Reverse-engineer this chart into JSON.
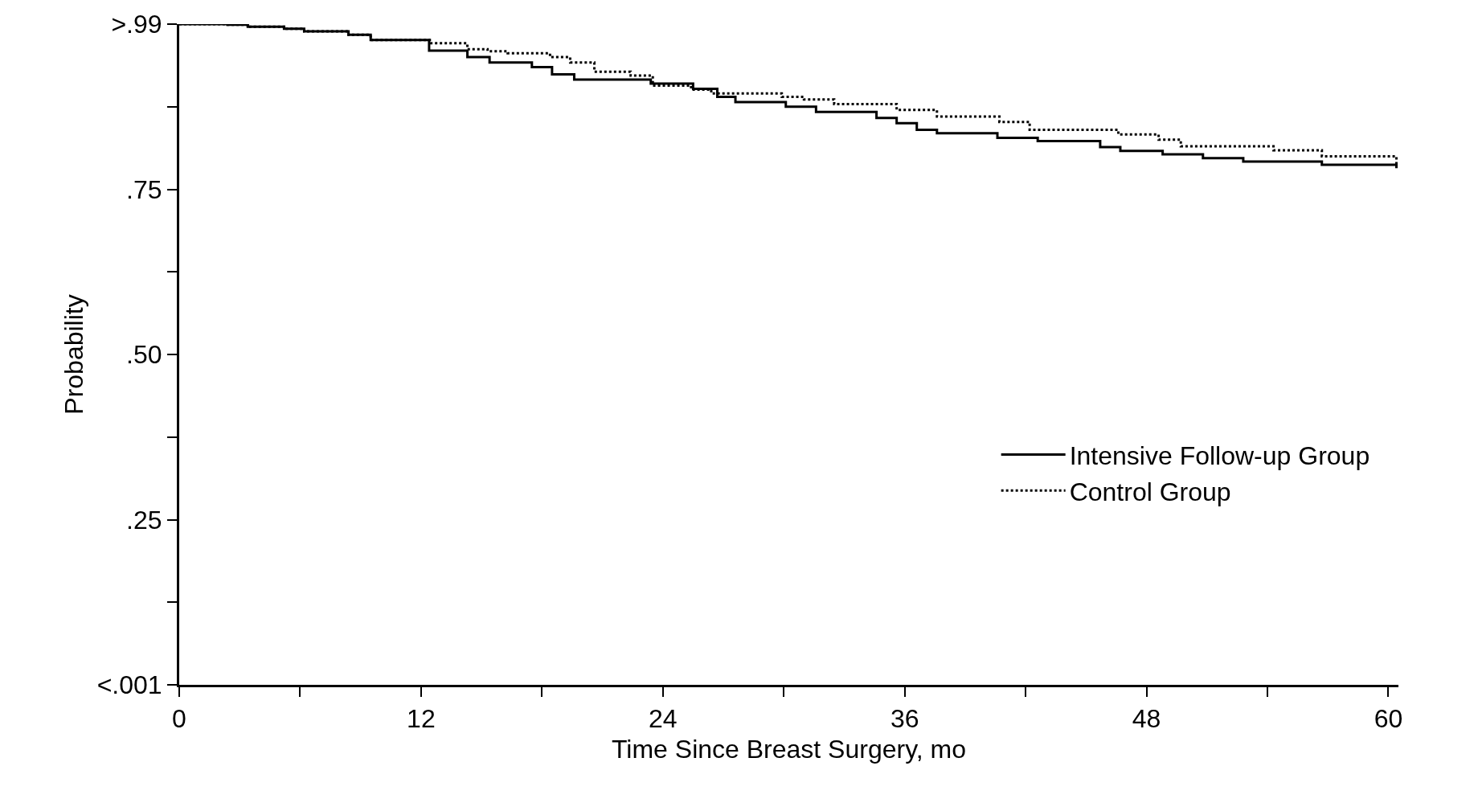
{
  "chart_data": {
    "type": "step",
    "xlabel": "Time Since Breast Surgery, mo",
    "ylabel": "Probability",
    "xlim": [
      0,
      60.5
    ],
    "ylim": [
      0,
      1
    ],
    "xticks": [
      0,
      {
        "value": 6,
        "label": null
      },
      12,
      {
        "value": 18,
        "label": null
      },
      24,
      {
        "value": 30,
        "label": null
      },
      36,
      {
        "value": 42,
        "label": null
      },
      48,
      {
        "value": 54,
        "label": null
      },
      60
    ],
    "yticks": [
      {
        "value": 0,
        "label": "<.001"
      },
      {
        "value": 0.125,
        "label": null
      },
      {
        "value": 0.25,
        "label": ".25"
      },
      {
        "value": 0.375,
        "label": null
      },
      {
        "value": 0.5,
        "label": ".50"
      },
      {
        "value": 0.625,
        "label": null
      },
      {
        "value": 0.75,
        "label": ".75"
      },
      {
        "value": 0.875,
        "label": null
      },
      {
        "value": 1,
        "label": ">.99"
      }
    ],
    "legend": "bottom right",
    "marker": "none",
    "series": [
      {
        "name": "Intensive Follow-up Group",
        "color": "#000000",
        "line_style": "solid",
        "x": [
          0,
          2.4,
          3.4,
          5.2,
          6.2,
          8.4,
          9.5,
          11.5,
          12.4,
          14.3,
          15.4,
          17.5,
          18.5,
          19.6,
          23.4,
          25.5,
          26.7,
          27.6,
          30.1,
          31.6,
          34.6,
          35.6,
          36.6,
          37.6,
          40.6,
          42.6,
          45.7,
          46.7,
          48.8,
          50.8,
          52.8,
          56.7,
          60.4
        ],
        "values": [
          1.0,
          0.999,
          0.996,
          0.993,
          0.989,
          0.984,
          0.976,
          0.976,
          0.96,
          0.95,
          0.942,
          0.935,
          0.924,
          0.916,
          0.91,
          0.902,
          0.89,
          0.882,
          0.875,
          0.867,
          0.858,
          0.85,
          0.84,
          0.835,
          0.828,
          0.823,
          0.814,
          0.808,
          0.803,
          0.797,
          0.792,
          0.787,
          0.782
        ]
      },
      {
        "name": "Control Group",
        "color": "#000000",
        "line_style": "dotted",
        "x": [
          0,
          2.4,
          3.4,
          5.2,
          6.2,
          8.4,
          9.5,
          12.5,
          14.3,
          15.3,
          16.3,
          18.4,
          19.4,
          20.6,
          22.4,
          23.5,
          25.4,
          26.4,
          29.9,
          31.0,
          32.5,
          35.6,
          37.6,
          40.7,
          42.2,
          46.6,
          48.6,
          49.7,
          54.3,
          56.7,
          60.4
        ],
        "values": [
          1.0,
          0.999,
          0.996,
          0.993,
          0.989,
          0.984,
          0.976,
          0.971,
          0.962,
          0.959,
          0.956,
          0.95,
          0.942,
          0.928,
          0.922,
          0.907,
          0.901,
          0.895,
          0.89,
          0.886,
          0.879,
          0.87,
          0.86,
          0.852,
          0.84,
          0.833,
          0.825,
          0.815,
          0.809,
          0.8,
          0.784
        ]
      }
    ]
  }
}
